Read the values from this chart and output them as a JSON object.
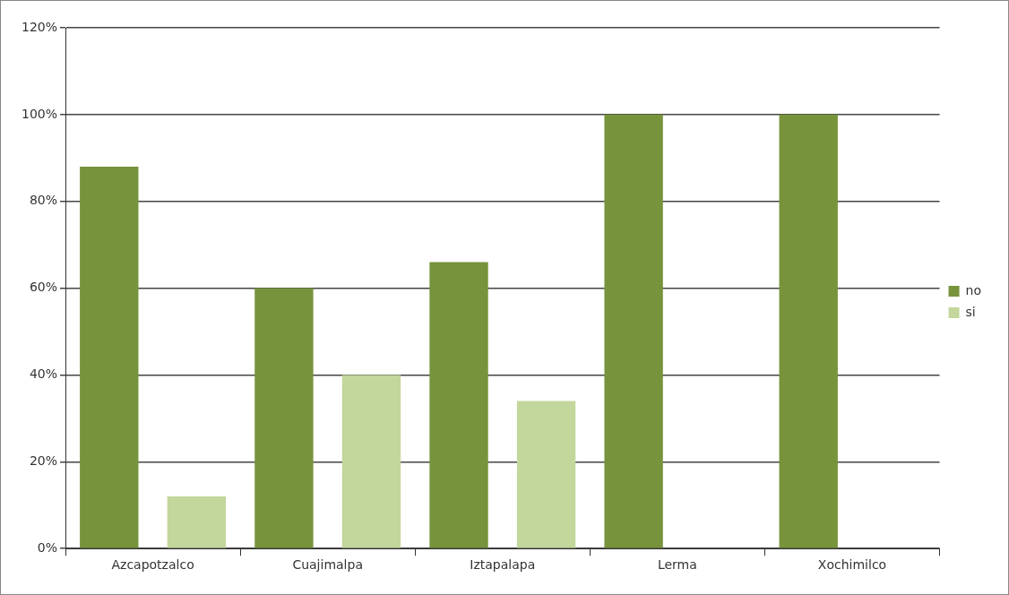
{
  "chart_data": {
    "type": "bar",
    "categories": [
      "Azcapotzalco",
      "Cuajimalpa",
      "Iztapalapa",
      "Lerma",
      "Xochimilco"
    ],
    "series": [
      {
        "name": "no",
        "color": "#77933c",
        "values": [
          88,
          60,
          66,
          100,
          100
        ]
      },
      {
        "name": "si",
        "color": "#c3d69b",
        "values": [
          12,
          40,
          34,
          0,
          0
        ]
      }
    ],
    "ylim": [
      0,
      120
    ],
    "yticks": [
      {
        "value": 0,
        "label": "0%"
      },
      {
        "value": 20,
        "label": "20%"
      },
      {
        "value": 40,
        "label": "40%"
      },
      {
        "value": 60,
        "label": "60%"
      },
      {
        "value": 80,
        "label": "80%"
      },
      {
        "value": 100,
        "label": "100%"
      },
      {
        "value": 120,
        "label": "120%"
      }
    ],
    "grid": "y",
    "legend": "right"
  }
}
